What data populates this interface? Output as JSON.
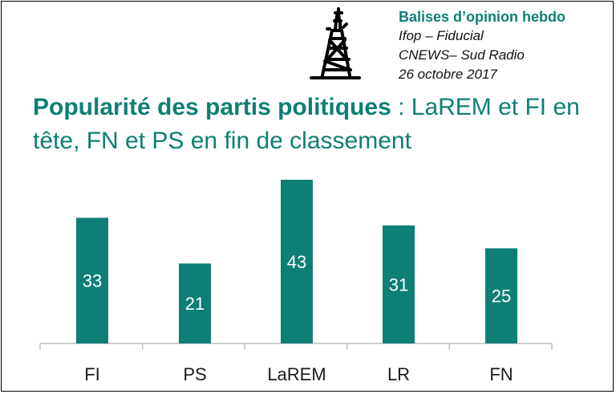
{
  "header": {
    "title": "Balises d’opinion hebdo",
    "source_line1": "Ifop – Fiducial",
    "source_line2": "CNEWS– Sud Radio",
    "date": "26 octobre 2017"
  },
  "headline": {
    "strong": "Popularité des partis politiques",
    "rest": " : LaREM et FI en tête, FN et PS en fin de classement"
  },
  "colors": {
    "accent": "#0e7f74",
    "bar": "#0e7f74",
    "axis": "#bfbfbf"
  },
  "chart_data": {
    "type": "bar",
    "categories": [
      "FI",
      "PS",
      "LaREM",
      "LR",
      "FN"
    ],
    "values": [
      33,
      21,
      43,
      31,
      25
    ],
    "ylim": [
      0,
      43
    ],
    "grid": false,
    "legend": "none"
  }
}
